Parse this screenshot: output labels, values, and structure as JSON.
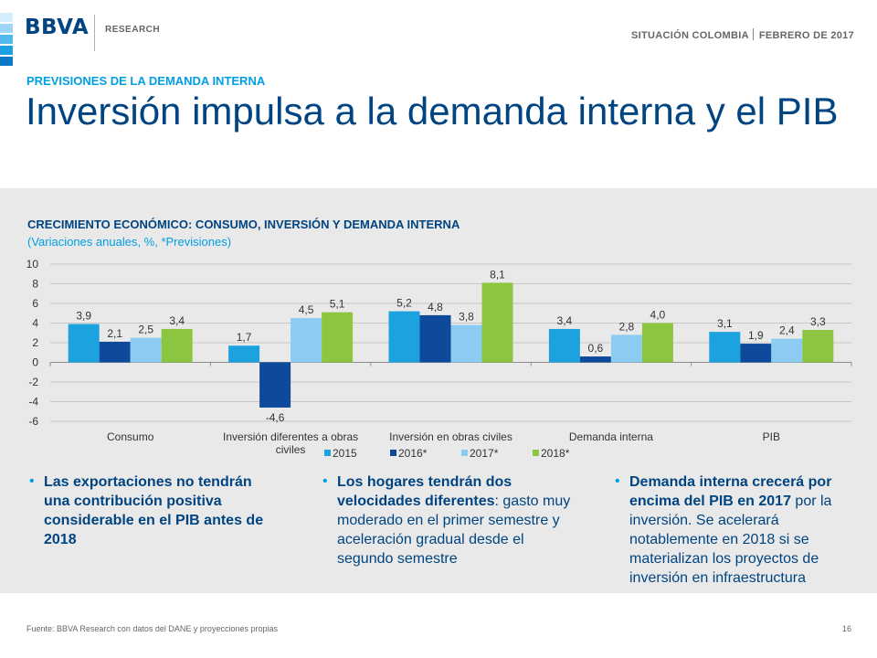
{
  "header": {
    "logo_text": "BBVA",
    "research_label": "RESEARCH",
    "report_name": "SITUACIÓN COLOMBIA",
    "report_date": "FEBRERO  DE 2017"
  },
  "colors": {
    "navy": "#004481",
    "accent": "#009ee5",
    "s2015": "#1da2e0",
    "s2016": "#0d4a9b",
    "s2017": "#8ccbf2",
    "s2018": "#8cc53f"
  },
  "section_label": "PREVISIONES DE LA DEMANDA INTERNA",
  "page_title": "Inversión impulsa a la demanda interna y el PIB",
  "chart_title": "CRECIMIENTO ECONÓMICO: CONSUMO, INVERSIÓN Y DEMANDA INTERNA",
  "chart_subtitle": "(Variaciones anuales, %, *Previsiones)",
  "chart_data": {
    "type": "bar",
    "categories": [
      "Consumo",
      "Inversión diferentes a obras civiles",
      "Inversión en obras civiles",
      "Demanda interna",
      "PIB"
    ],
    "series": [
      {
        "name": "2015",
        "values": [
          3.9,
          1.7,
          5.2,
          3.4,
          3.1
        ]
      },
      {
        "name": "2016*",
        "values": [
          2.1,
          -4.6,
          4.8,
          0.6,
          1.9
        ]
      },
      {
        "name": "2017*",
        "values": [
          2.5,
          4.5,
          3.8,
          2.8,
          2.4
        ]
      },
      {
        "name": "2018*",
        "values": [
          3.4,
          5.1,
          8.1,
          4.0,
          3.3
        ]
      }
    ],
    "ylim": [
      -6,
      10
    ],
    "yticks": [
      -6,
      -4,
      -2,
      0,
      2,
      4,
      6,
      8,
      10
    ],
    "grid": true,
    "legend": "bottom",
    "decimal_separator": ","
  },
  "bullets": [
    {
      "bold": "Las exportaciones no tendrán una contribución positiva considerable en el PIB antes de 2018",
      "rest": ""
    },
    {
      "bold": "Los hogares tendrán dos velocidades diferentes",
      "rest": ": gasto muy moderado en el primer semestre y aceleración gradual desde el segundo semestre"
    },
    {
      "bold": "Demanda interna crecerá por encima del PIB en 2017",
      "rest": " por la inversión. Se acelerará notablemente en 2018 si se materializan los proyectos de inversión en infraestructura"
    }
  ],
  "footer": {
    "source": "Fuente: BBVA Research con datos del DANE  y proyecciones propias",
    "page_number": "16"
  }
}
